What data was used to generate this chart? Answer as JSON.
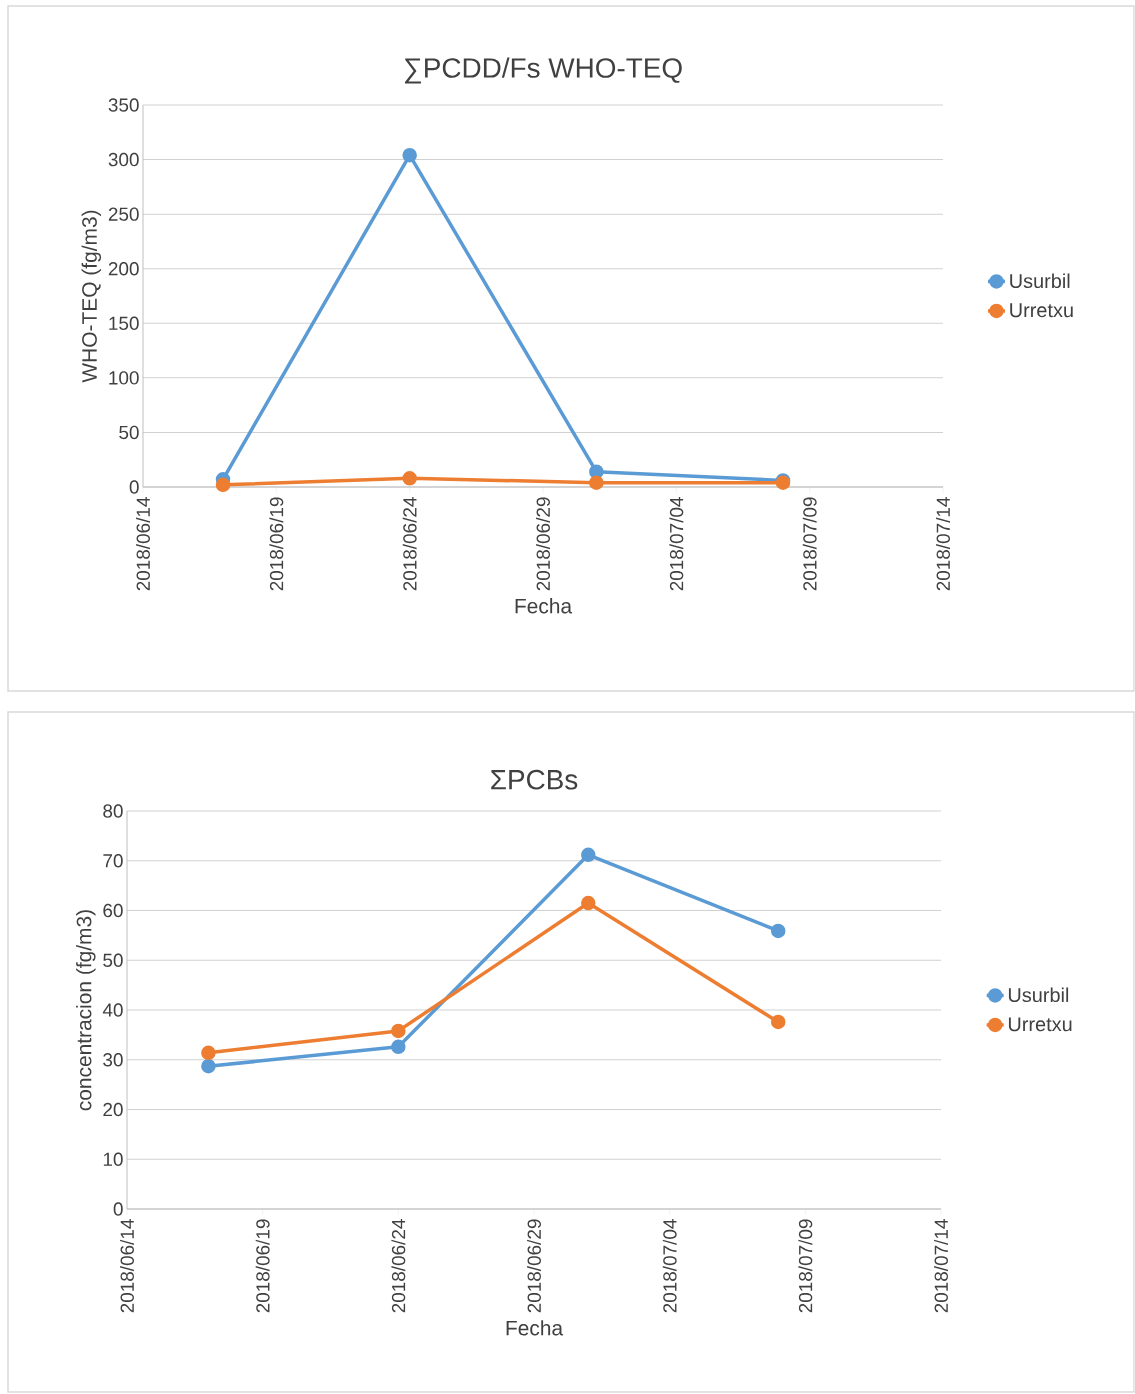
{
  "chart_data": [
    {
      "type": "line",
      "title": "∑PCDD/Fs WHO-TEQ",
      "xlabel": "Fecha",
      "ylabel": "WHO-TEQ (fg/m3)",
      "x": [
        "2018-06-17",
        "2018-06-24",
        "2018-07-01",
        "2018-07-08"
      ],
      "series": [
        {
          "name": "Usurbil",
          "color": "#5b9bd5",
          "values": [
            7,
            304,
            14,
            6
          ]
        },
        {
          "name": "Urretxu",
          "color": "#ed7d31",
          "values": [
            2,
            8,
            4,
            4
          ]
        }
      ],
      "xlim": [
        "2018-06-14",
        "2018-07-14"
      ],
      "xticks": [
        {
          "value": "2018-06-14",
          "label": "2018/06/14"
        },
        {
          "value": "2018-06-19",
          "label": "2018/06/19"
        },
        {
          "value": "2018-06-24",
          "label": "2018/06/24"
        },
        {
          "value": "2018-06-29",
          "label": "2018/06/29"
        },
        {
          "value": "2018-07-04",
          "label": "2018/07/04"
        },
        {
          "value": "2018-07-09",
          "label": "2018/07/09"
        },
        {
          "value": "2018-07-14",
          "label": "2018/07/14"
        }
      ],
      "ylim": [
        0,
        350
      ],
      "yticks": [
        0,
        50,
        100,
        150,
        200,
        250,
        300,
        350
      ],
      "grid": "y",
      "legend": "right",
      "marker": "circle",
      "line_style": "solid"
    },
    {
      "type": "line",
      "title": "ΣPCBs",
      "xlabel": "Fecha",
      "ylabel": "concentracion (fg/m3)",
      "x": [
        "2018-06-17",
        "2018-06-24",
        "2018-07-01",
        "2018-07-08"
      ],
      "series": [
        {
          "name": "Usurbil",
          "color": "#5b9bd5",
          "values": [
            28.7,
            32.6,
            71.2,
            55.9
          ]
        },
        {
          "name": "Urretxu",
          "color": "#ed7d31",
          "values": [
            31.4,
            35.8,
            61.5,
            37.6
          ]
        }
      ],
      "xlim": [
        "2018-06-14",
        "2018-07-14"
      ],
      "xticks": [
        {
          "value": "2018-06-14",
          "label": "2018/06/14"
        },
        {
          "value": "2018-06-19",
          "label": "2018/06/19"
        },
        {
          "value": "2018-06-24",
          "label": "2018/06/24"
        },
        {
          "value": "2018-06-29",
          "label": "2018/06/29"
        },
        {
          "value": "2018-07-04",
          "label": "2018/07/04"
        },
        {
          "value": "2018-07-09",
          "label": "2018/07/09"
        },
        {
          "value": "2018-07-14",
          "label": "2018/07/14"
        }
      ],
      "ylim": [
        0,
        80
      ],
      "yticks": [
        0,
        10,
        20,
        30,
        40,
        50,
        60,
        70,
        80
      ],
      "grid": "y",
      "legend": "right",
      "marker": "circle",
      "line_style": "solid"
    }
  ]
}
